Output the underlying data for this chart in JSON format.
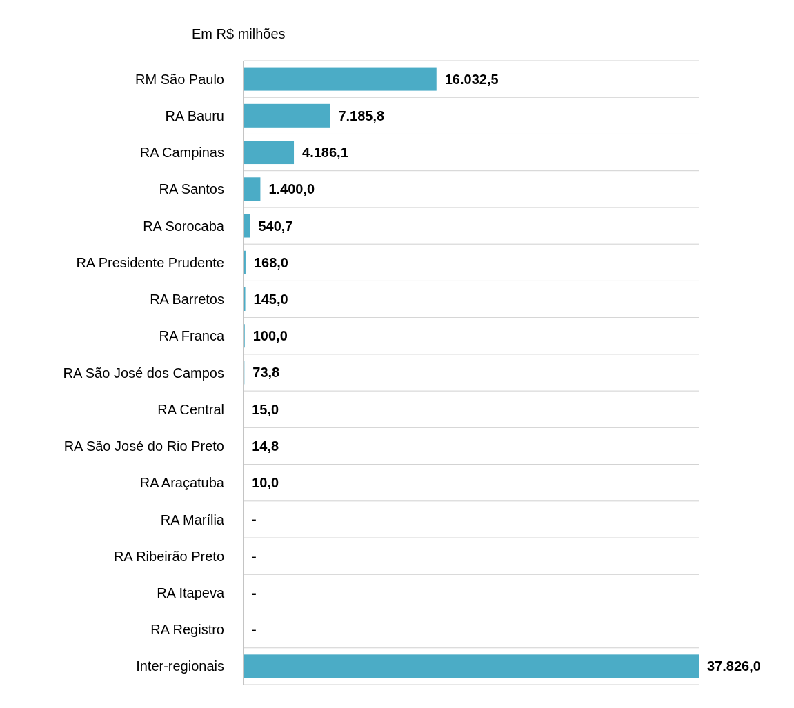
{
  "chart_data": {
    "type": "bar",
    "orientation": "horizontal",
    "title": "Em R$ milhões",
    "categories": [
      "RM São Paulo",
      "RA Bauru",
      "RA Campinas",
      "RA Santos",
      "RA Sorocaba",
      "RA Presidente Prudente",
      "RA Barretos",
      "RA Franca",
      "RA São José dos Campos",
      "RA Central",
      "RA São José do Rio Preto",
      "RA Araçatuba",
      "RA Marília",
      "RA Ribeirão Preto",
      "RA Itapeva",
      "RA Registro",
      "Inter-regionais"
    ],
    "values": [
      16032.5,
      7185.8,
      4186.1,
      1400.0,
      540.7,
      168.0,
      145.0,
      100.0,
      73.8,
      15.0,
      14.8,
      10.0,
      0,
      0,
      0,
      0,
      37826.0
    ],
    "value_labels": [
      "16.032,5",
      "7.185,8",
      "4.186,1",
      "1.400,0",
      "540,7",
      "168,0",
      "145,0",
      "100,0",
      "73,8",
      "15,0",
      "14,8",
      "10,0",
      "-",
      "-",
      "-",
      "-",
      "37.826,0"
    ],
    "color": "#4bacc6",
    "grid": "y"
  }
}
